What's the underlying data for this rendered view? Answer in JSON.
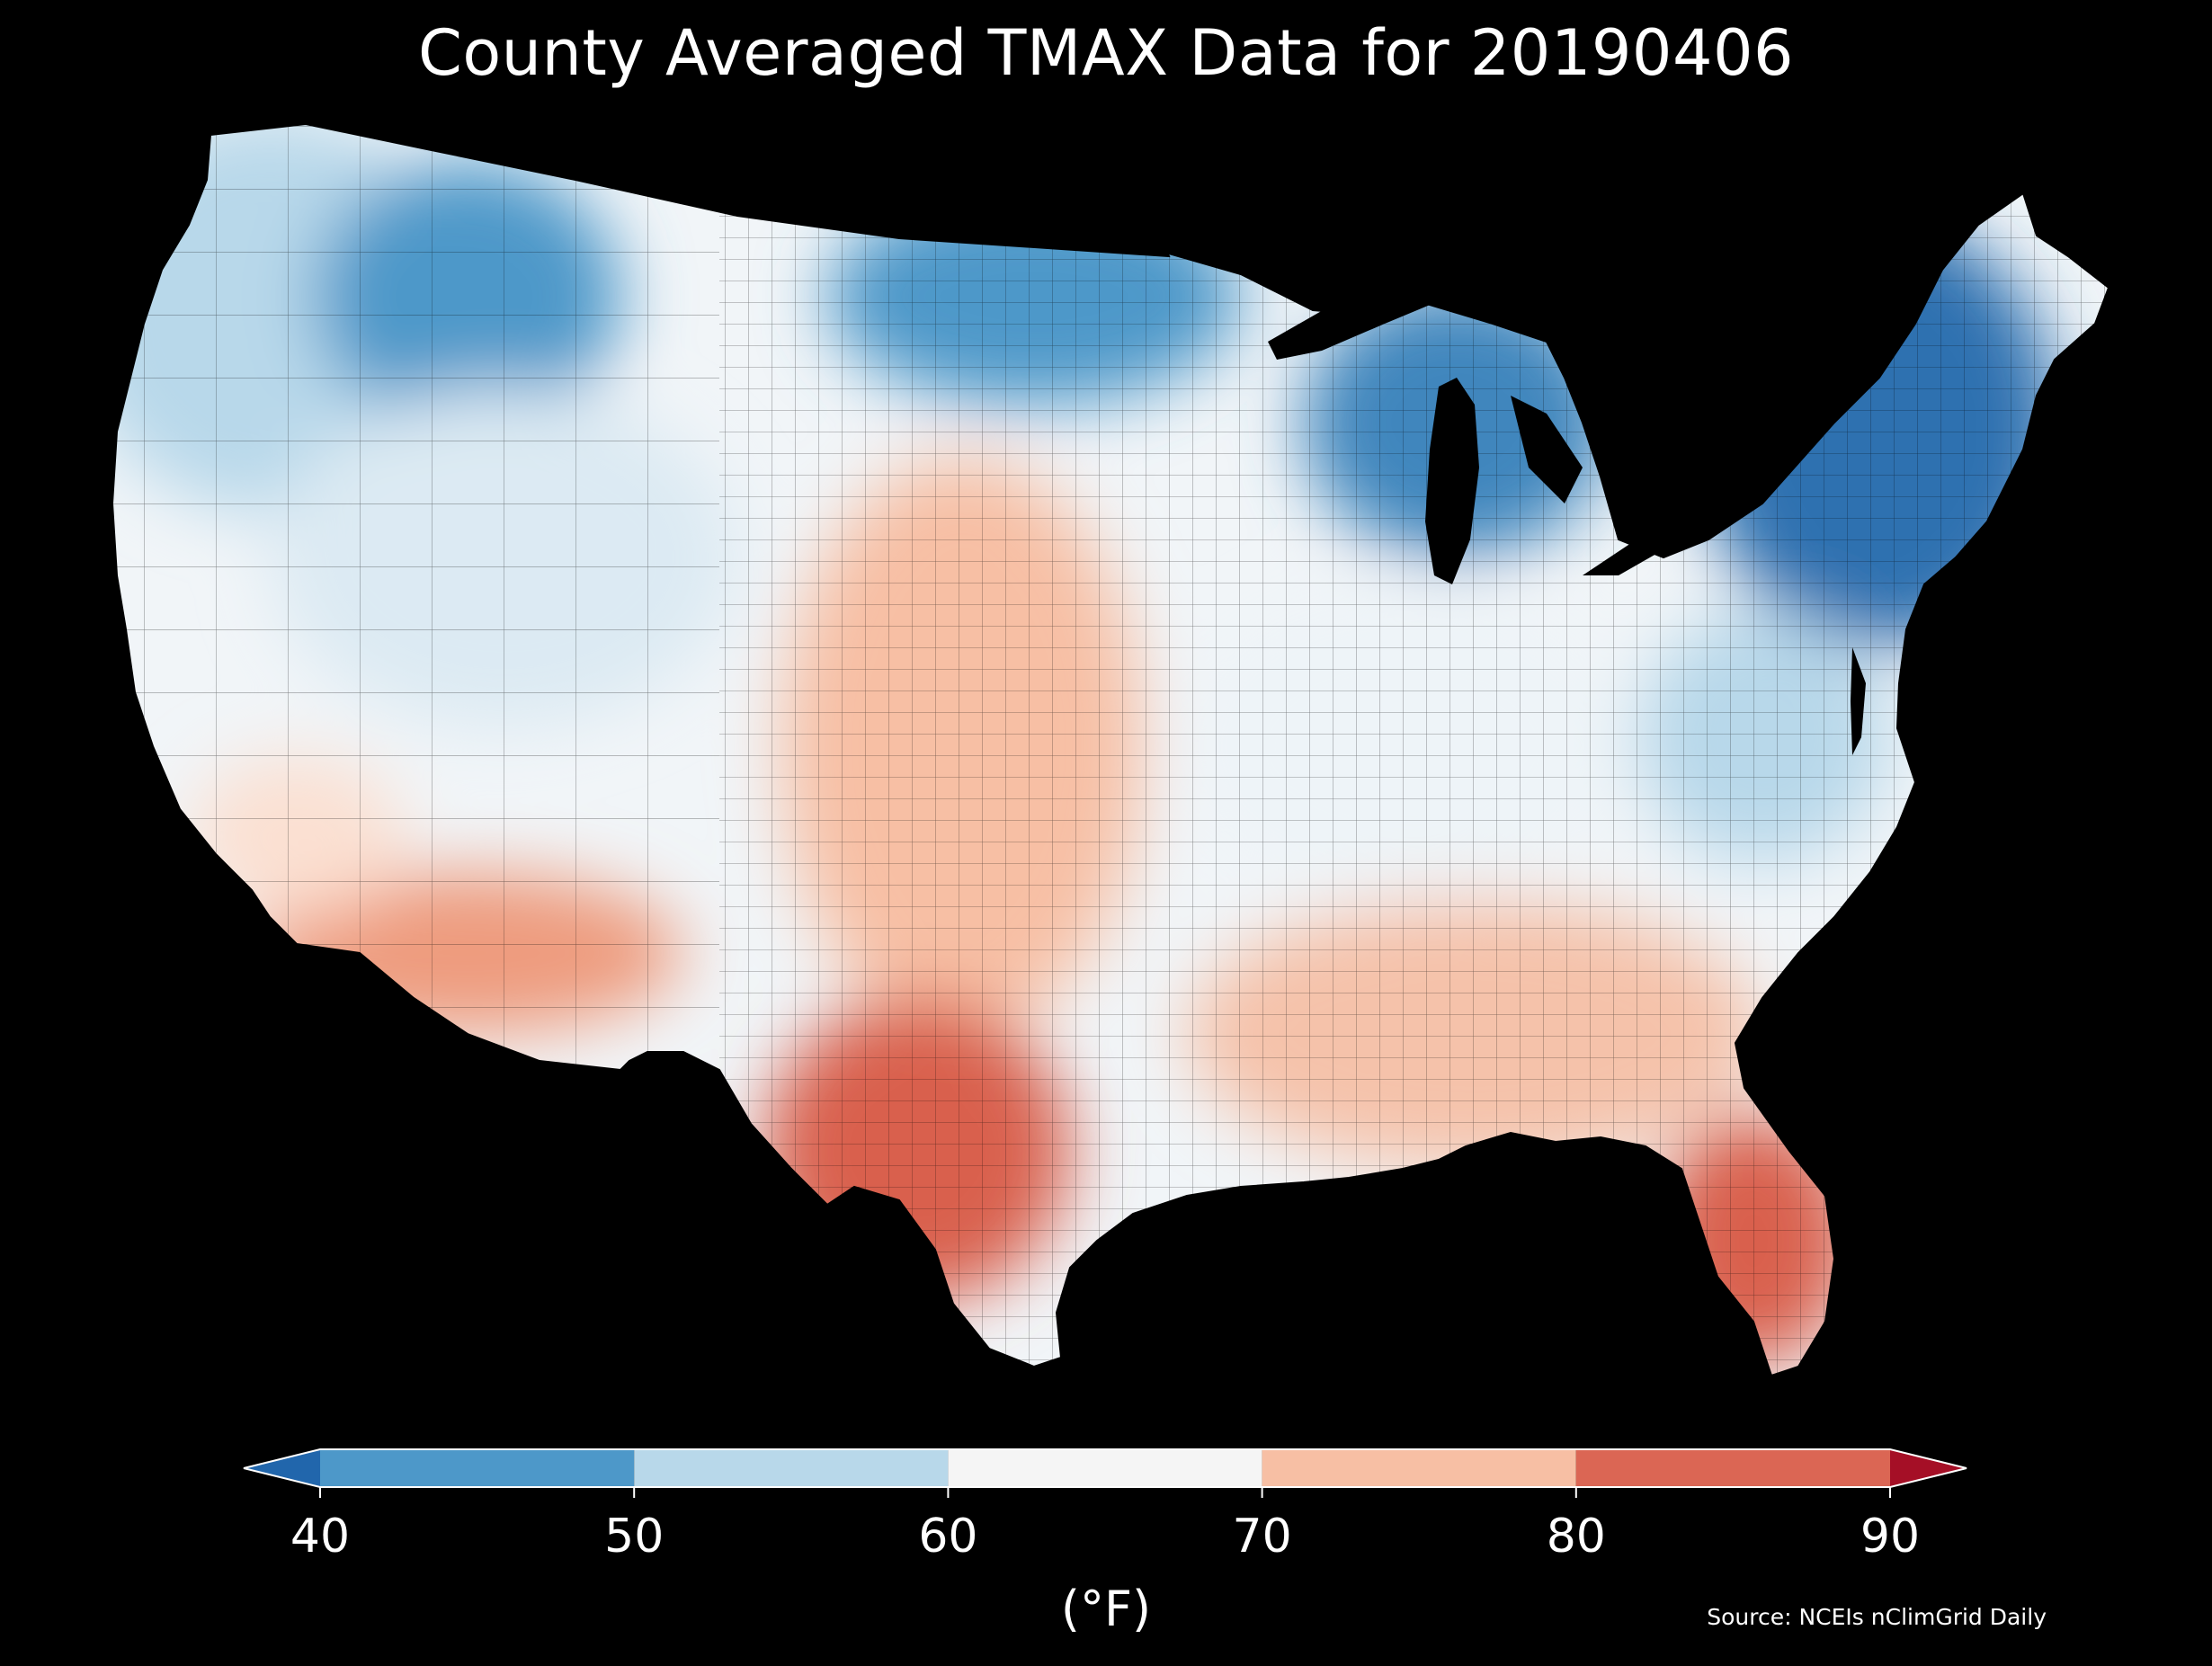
{
  "title": "County Averaged TMAX Data for 20190406",
  "source": "Source: NCEIs nClimGrid Daily",
  "colorbar": {
    "unit_label": "(°F)",
    "ticks": [
      "40",
      "50",
      "60",
      "70",
      "80",
      "90"
    ],
    "bins": [
      {
        "from": null,
        "to": 40,
        "color": "#2166ac"
      },
      {
        "from": 40,
        "to": 50,
        "color": "#4d98c9"
      },
      {
        "from": 50,
        "to": 60,
        "color": "#b8d8ea"
      },
      {
        "from": 60,
        "to": 70,
        "color": "#f5f5f5"
      },
      {
        "from": 70,
        "to": 80,
        "color": "#f7bfa4"
      },
      {
        "from": 80,
        "to": 90,
        "color": "#db6654"
      },
      {
        "from": 90,
        "to": null,
        "color": "#a50f26"
      }
    ],
    "extend": "both"
  },
  "map": {
    "region": "Contiguous United States",
    "unit": "county",
    "variable": "TMAX",
    "regional_pattern": [
      {
        "region": "northwest",
        "color": "#b8d8ea"
      },
      {
        "region": "northern-rockies",
        "color": "#4d98c9"
      },
      {
        "region": "great-basin",
        "color": "#dceaf3"
      },
      {
        "region": "southwest-desert",
        "color": "#ee9b7e"
      },
      {
        "region": "southern-california",
        "color": "#fbe0d2"
      },
      {
        "region": "northern-plains",
        "color": "#4d98c9"
      },
      {
        "region": "central-plains",
        "color": "#f7bfa4"
      },
      {
        "region": "south-texas",
        "color": "#d9604d"
      },
      {
        "region": "great-lakes",
        "color": "#3f86bd"
      },
      {
        "region": "midwest",
        "color": "#eef4f8"
      },
      {
        "region": "southeast",
        "color": "#f5c2aa"
      },
      {
        "region": "florida",
        "color": "#d9604d"
      },
      {
        "region": "northeast",
        "color": "#2e71b0"
      },
      {
        "region": "mid-atlantic",
        "color": "#b8d8ea"
      }
    ]
  }
}
